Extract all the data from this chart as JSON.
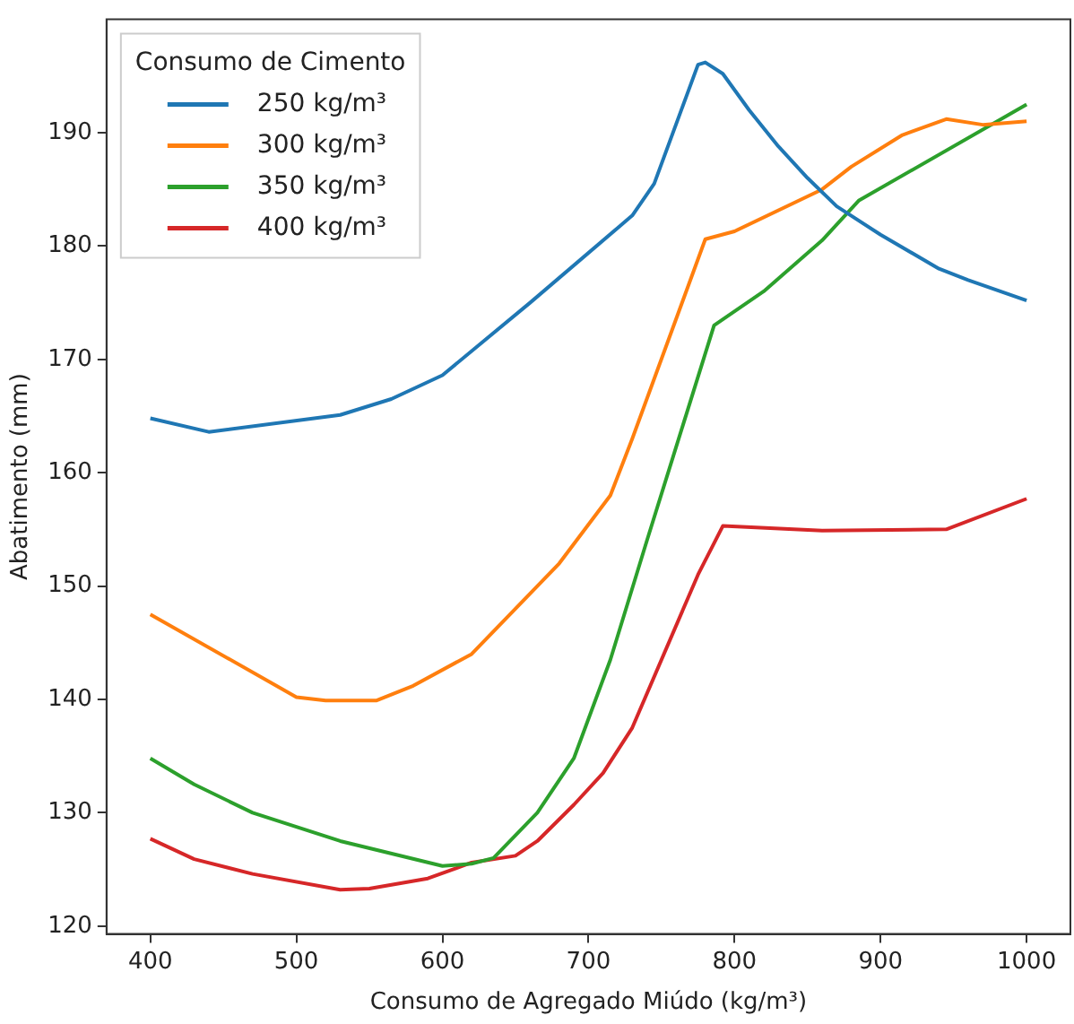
{
  "chart_data": {
    "type": "line",
    "xlabel": "Consumo de Agregado Miúdo (kg/m³)",
    "ylabel": "Abatimento (mm)",
    "legend_title": "Consumo de Cimento",
    "legend": "top left",
    "grid": false,
    "marker": "none",
    "line_style": "solid",
    "xlim": [
      370,
      1030
    ],
    "ylim": [
      119.3,
      200
    ],
    "xticks": [
      400,
      500,
      600,
      700,
      800,
      900,
      1000
    ],
    "yticks": [
      120,
      130,
      140,
      150,
      160,
      170,
      180,
      190
    ],
    "series": [
      {
        "name": "250 kg/m³",
        "color": "#1f77b4",
        "x": [
          400,
          440,
          530,
          565,
          600,
          660,
          720,
          730,
          745,
          775,
          780,
          792,
          810,
          830,
          850,
          870,
          900,
          940,
          960,
          1000
        ],
        "values": [
          164.8,
          163.6,
          165.1,
          166.5,
          168.6,
          175,
          181.6,
          182.7,
          185.5,
          196,
          196.2,
          195.2,
          192,
          188.8,
          186,
          183.5,
          181,
          178,
          177,
          175.2
        ]
      },
      {
        "name": "300 kg/m³",
        "color": "#ff7f0e",
        "x": [
          400,
          500,
          520,
          555,
          580,
          620,
          680,
          715,
          730,
          780,
          800,
          860,
          880,
          915,
          945,
          970,
          1000
        ],
        "values": [
          147.5,
          140.2,
          139.9,
          139.9,
          141.2,
          144,
          152,
          158,
          163,
          180.6,
          181.3,
          185,
          187,
          189.8,
          191.2,
          190.7,
          191
        ]
      },
      {
        "name": "350 kg/m³",
        "color": "#2ca02c",
        "x": [
          400,
          430,
          470,
          530,
          600,
          620,
          635,
          665,
          690,
          715,
          740,
          786,
          820,
          860,
          885,
          1000
        ],
        "values": [
          134.8,
          132.5,
          130,
          127.5,
          125.3,
          125.5,
          126,
          130,
          134.8,
          143.5,
          154,
          173,
          176,
          180.5,
          184,
          192.5
        ]
      },
      {
        "name": "400 kg/m³",
        "color": "#d62728",
        "x": [
          400,
          430,
          470,
          530,
          550,
          590,
          620,
          650,
          665,
          690,
          710,
          730,
          775,
          792,
          860,
          945,
          1000
        ],
        "values": [
          127.7,
          125.9,
          124.6,
          123.2,
          123.3,
          124.2,
          125.6,
          126.2,
          127.5,
          130.7,
          133.5,
          137.5,
          151,
          155.3,
          154.9,
          155,
          157.7
        ]
      }
    ]
  }
}
